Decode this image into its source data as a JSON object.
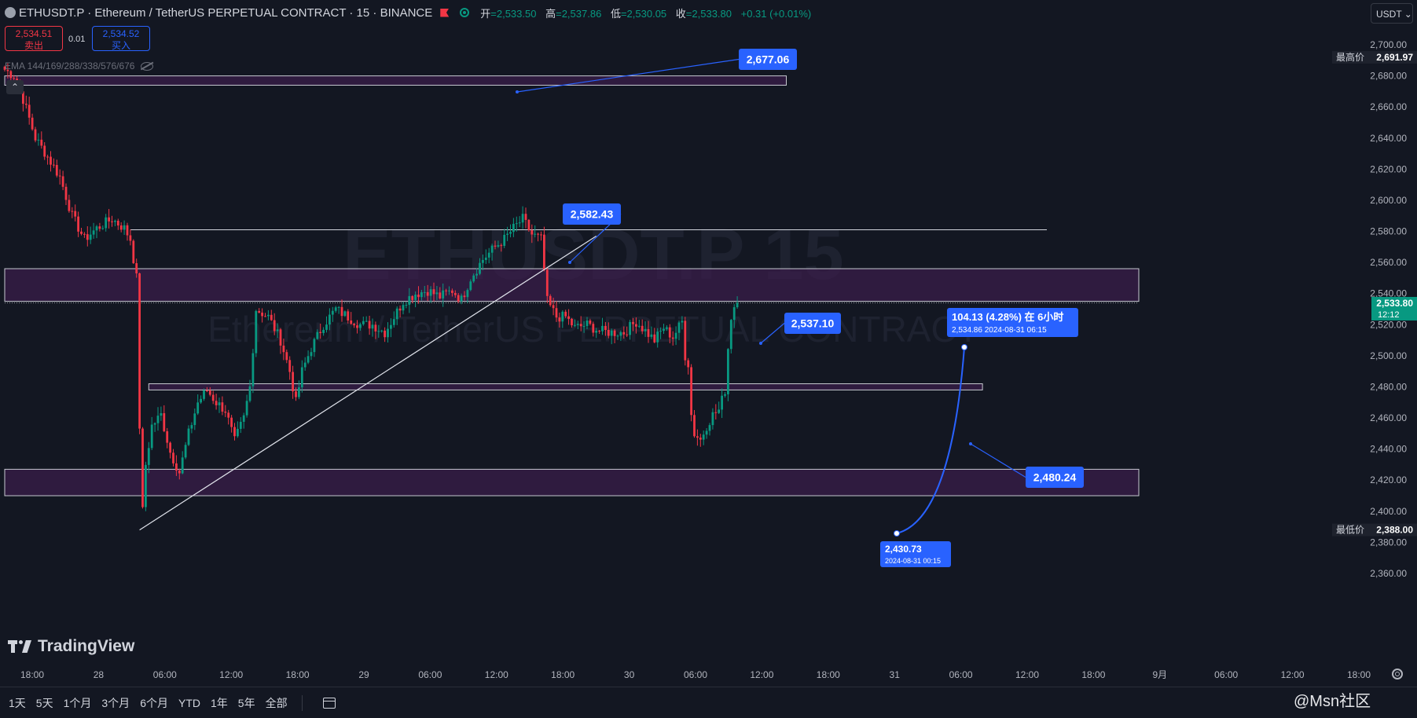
{
  "header": {
    "title": "ETHUSDT.P · Ethereum / TetherUS PERPETUAL CONTRACT · 15 · BINANCE",
    "ohlc": {
      "open_label": "开",
      "open": "=2,533.50",
      "high_label": "高",
      "high": "=2,537.86",
      "low_label": "低",
      "low": "=2,530.05",
      "close_label": "收",
      "close": "=2,533.80",
      "change": "+0.31 (+0.01%)"
    }
  },
  "trade": {
    "sell_price": "2,534.51",
    "sell_label": "卖出",
    "spread": "0.01",
    "buy_price": "2,534.52",
    "buy_label": "买入"
  },
  "indicator": {
    "label": "EMA 144/169/288/338/576/676"
  },
  "currency_button": "USDT",
  "logo_text": "TradingView",
  "timeframes": [
    "1天",
    "5天",
    "1个月",
    "3个月",
    "6个月",
    "YTD",
    "1年",
    "5年",
    "全部"
  ],
  "source_watermark": "@Msn社区",
  "colors": {
    "up": "#089981",
    "down": "#f23645",
    "accent": "#2962ff",
    "zone": "#3a1d4a",
    "background": "#131722"
  },
  "chart_data": {
    "type": "candlestick",
    "symbol_watermark": "ETHUSDT.P 15",
    "description_watermark": "Ethereum / TetherUS PERPETUAL CONTRACT",
    "ylim": [
      2350,
      2710
    ],
    "y_ticks": [
      "2,700.00",
      "2,680.00",
      "2,660.00",
      "2,640.00",
      "2,620.00",
      "2,600.00",
      "2,580.00",
      "2,560.00",
      "2,540.00",
      "2,520.00",
      "2,500.00",
      "2,480.00",
      "2,460.00",
      "2,440.00",
      "2,420.00",
      "2,400.00",
      "2,380.00",
      "2,360.00"
    ],
    "x_ticks": [
      "18:00",
      "28",
      "06:00",
      "12:00",
      "18:00",
      "29",
      "06:00",
      "12:00",
      "18:00",
      "30",
      "06:00",
      "12:00",
      "18:00",
      "31",
      "06:00",
      "12:00",
      "18:00",
      "9月",
      "06:00",
      "12:00",
      "18:00"
    ],
    "last_price": {
      "value": 2533.8,
      "label": "2,533.80",
      "countdown": "12:12"
    },
    "high_marker": {
      "label": "最高价",
      "value": "2,691.97"
    },
    "low_marker": {
      "label": "最低价",
      "value": "2,388.00"
    },
    "path": [
      [
        0,
        2684
      ],
      [
        3,
        2680
      ],
      [
        6,
        2665
      ],
      [
        10,
        2640
      ],
      [
        14,
        2628
      ],
      [
        18,
        2615
      ],
      [
        22,
        2590
      ],
      [
        26,
        2575
      ],
      [
        30,
        2582
      ],
      [
        35,
        2588
      ],
      [
        39,
        2582
      ],
      [
        41,
        2575
      ],
      [
        43,
        2550
      ],
      [
        44,
        2455
      ],
      [
        45,
        2400
      ],
      [
        46,
        2430
      ],
      [
        48,
        2455
      ],
      [
        51,
        2462
      ],
      [
        54,
        2438
      ],
      [
        57,
        2425
      ],
      [
        60,
        2450
      ],
      [
        63,
        2470
      ],
      [
        66,
        2478
      ],
      [
        69,
        2470
      ],
      [
        72,
        2465
      ],
      [
        75,
        2445
      ],
      [
        78,
        2460
      ],
      [
        80,
        2480
      ],
      [
        82,
        2530
      ],
      [
        86,
        2525
      ],
      [
        90,
        2510
      ],
      [
        93,
        2490
      ],
      [
        95,
        2470
      ],
      [
        97,
        2490
      ],
      [
        100,
        2505
      ],
      [
        104,
        2520
      ],
      [
        108,
        2530
      ],
      [
        112,
        2525
      ],
      [
        116,
        2520
      ],
      [
        120,
        2520
      ],
      [
        124,
        2515
      ],
      [
        127,
        2525
      ],
      [
        130,
        2535
      ],
      [
        134,
        2540
      ],
      [
        138,
        2542
      ],
      [
        142,
        2538
      ],
      [
        146,
        2542
      ],
      [
        149,
        2536
      ],
      [
        152,
        2550
      ],
      [
        156,
        2562
      ],
      [
        160,
        2570
      ],
      [
        163,
        2575
      ],
      [
        166,
        2582
      ],
      [
        169,
        2588
      ],
      [
        172,
        2578
      ],
      [
        175,
        2575
      ],
      [
        177,
        2535
      ],
      [
        180,
        2525
      ],
      [
        183,
        2525
      ],
      [
        186,
        2518
      ],
      [
        190,
        2520
      ],
      [
        194,
        2516
      ],
      [
        198,
        2515
      ],
      [
        202,
        2515
      ],
      [
        206,
        2522
      ],
      [
        209,
        2516
      ],
      [
        212,
        2510
      ],
      [
        215,
        2518
      ],
      [
        218,
        2512
      ],
      [
        221,
        2522
      ],
      [
        222,
        2500
      ],
      [
        223,
        2495
      ],
      [
        224,
        2462
      ],
      [
        225,
        2450
      ],
      [
        227,
        2446
      ],
      [
        229,
        2455
      ],
      [
        231,
        2462
      ],
      [
        233,
        2465
      ],
      [
        235,
        2478
      ],
      [
        236,
        2505
      ],
      [
        237,
        2525
      ],
      [
        238,
        2532
      ],
      [
        239,
        2534
      ]
    ],
    "hlines": [
      {
        "value": 2581,
        "x_from": 41,
        "x_to": 340
      },
      {
        "value": 2534,
        "x_from": 0,
        "x_to": 370,
        "dotted": true
      }
    ],
    "zones": [
      {
        "from": 2674,
        "to": 2680,
        "x_from": 0,
        "x_to": 255
      },
      {
        "from": 2535,
        "to": 2556,
        "x_from": 0,
        "x_to": 370
      },
      {
        "from": 2478,
        "to": 2482,
        "x_from": 47,
        "x_to": 319
      },
      {
        "from": 2410,
        "to": 2427,
        "x_from": 0,
        "x_to": 370
      }
    ],
    "trendline": {
      "from": [
        44,
        2388
      ],
      "to": [
        193,
        2577
      ]
    },
    "labels": [
      {
        "text": "2,677.06"
      },
      {
        "text": "2,582.43"
      },
      {
        "text": "2,537.10"
      },
      {
        "text": "2,480.24"
      },
      {
        "text": "104.13 (4.28%) 在 6小时",
        "subtext": "2,534.86  2024-08-31  06:15"
      },
      {
        "text": "2,430.73",
        "subtext": "2024-08-31 00:15"
      }
    ]
  }
}
